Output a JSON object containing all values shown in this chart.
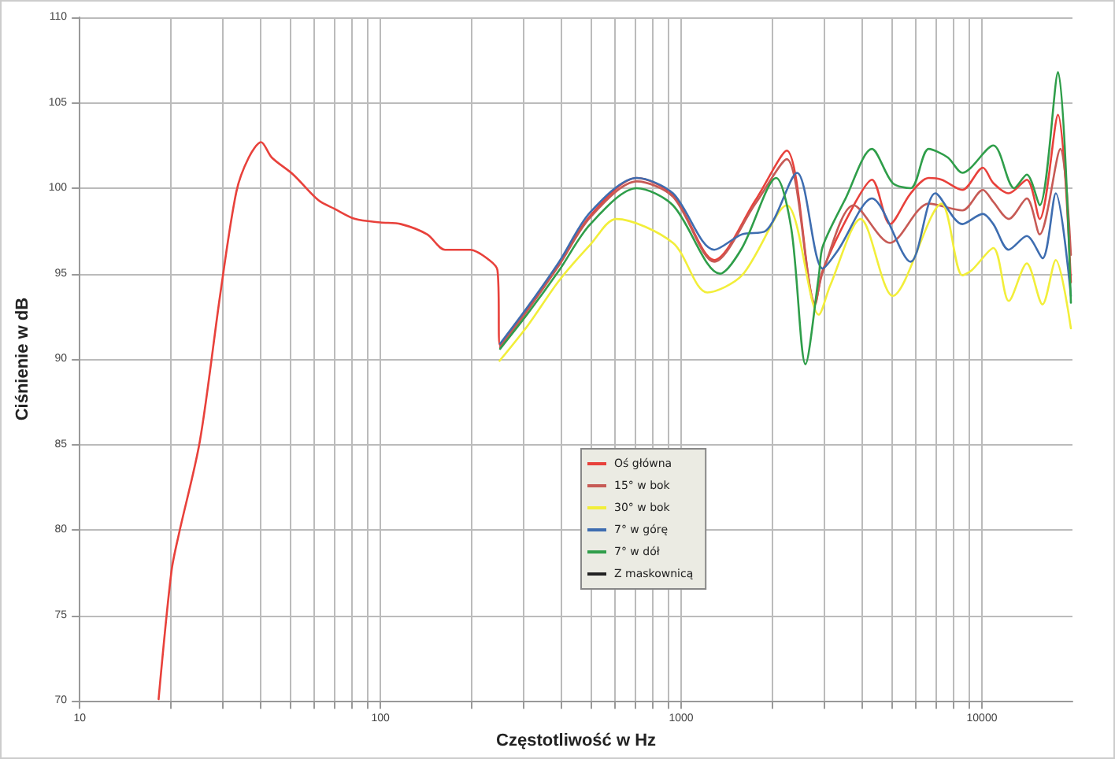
{
  "chart_data": {
    "type": "line",
    "xlabel": "Częstotliwość w Hz",
    "ylabel": "Ciśnienie w dB",
    "log": "x",
    "grid": true,
    "legend": "center",
    "marker": "none",
    "line_style": "solid",
    "xlim": [
      10,
      20000
    ],
    "ylim": [
      70,
      110
    ],
    "xticks": [
      10,
      {
        "value": 20,
        "label": null
      },
      {
        "value": 30,
        "label": null
      },
      {
        "value": 40,
        "label": null
      },
      {
        "value": 50,
        "label": null
      },
      {
        "value": 60,
        "label": null
      },
      {
        "value": 70,
        "label": null
      },
      {
        "value": 80,
        "label": null
      },
      {
        "value": 90,
        "label": null
      },
      100,
      {
        "value": 200,
        "label": null
      },
      {
        "value": 300,
        "label": null
      },
      {
        "value": 400,
        "label": null
      },
      {
        "value": 500,
        "label": null
      },
      {
        "value": 600,
        "label": null
      },
      {
        "value": 700,
        "label": null
      },
      {
        "value": 800,
        "label": null
      },
      {
        "value": 900,
        "label": null
      },
      1000,
      {
        "value": 2000,
        "label": null
      },
      {
        "value": 3000,
        "label": null
      },
      {
        "value": 4000,
        "label": null
      },
      {
        "value": 5000,
        "label": null
      },
      {
        "value": 6000,
        "label": null
      },
      {
        "value": 7000,
        "label": null
      },
      {
        "value": 8000,
        "label": null
      },
      {
        "value": 9000,
        "label": null
      },
      10000
    ],
    "yticks": [
      70,
      75,
      80,
      85,
      90,
      95,
      100,
      105,
      110
    ],
    "series": [
      {
        "name": "Oś główna",
        "color": "#e8413b",
        "x": [
          18.3,
          20.2,
          21.4,
          25.1,
          29.4,
          33.2,
          36.5,
          40.1,
          43.5,
          51.3,
          62.2,
          70.3,
          82.4,
          100,
          117,
          143,
          164,
          199,
          230,
          245,
          250,
          310,
          393,
          499,
          712,
          939,
          1288,
          1766,
          2243,
          2786,
          2956,
          3748,
          4307,
          4946,
          5794,
          6656,
          7344,
          8606,
          10070,
          10910,
          12280,
          14100,
          15560,
          17900,
          19760
        ],
        "values": [
          70.1,
          77.6,
          79.8,
          85.2,
          93.9,
          99.8,
          101.8,
          102.7,
          101.8,
          100.8,
          99.3,
          98.8,
          98.2,
          98.0,
          97.9,
          97.3,
          96.4,
          96.4,
          95.8,
          95.2,
          90.8,
          93.0,
          95.6,
          98.4,
          100.6,
          99.6,
          95.8,
          99.3,
          102.2,
          93.2,
          95.2,
          99.0,
          100.5,
          97.9,
          99.7,
          100.6,
          100.5,
          99.9,
          101.2,
          100.3,
          99.7,
          100.5,
          98.2,
          104.3,
          94.5
        ]
      },
      {
        "name": "15° w bok",
        "color": "#c75a55",
        "x": [
          250,
          310,
          393,
          499,
          712,
          939,
          1288,
          1766,
          2243,
          2786,
          2956,
          3748,
          4946,
          6656,
          8606,
          10070,
          10910,
          12280,
          14100,
          15560,
          18230,
          19760
        ],
        "values": [
          90.7,
          92.9,
          95.5,
          98.3,
          100.4,
          99.5,
          95.7,
          99.1,
          101.7,
          93.3,
          95.1,
          99.0,
          96.8,
          99.1,
          98.7,
          99.9,
          99.2,
          98.2,
          99.4,
          97.3,
          102.3,
          96.1
        ]
      },
      {
        "name": "30° w bok",
        "color": "#f2ee3a",
        "x": [
          249,
          310,
          393,
          499,
          608,
          939,
          1222,
          1593,
          2243,
          2870,
          3128,
          3950,
          5050,
          7344,
          8606,
          9250,
          10910,
          12280,
          14100,
          15900,
          17600,
          19760
        ],
        "values": [
          89.9,
          92.0,
          94.6,
          96.7,
          98.2,
          96.8,
          93.9,
          94.9,
          99.0,
          92.6,
          94.3,
          98.2,
          93.7,
          99.1,
          94.9,
          95.2,
          96.5,
          93.4,
          95.6,
          93.2,
          95.8,
          91.8
        ]
      },
      {
        "name": "7° w górę",
        "color": "#3e6db0",
        "x": [
          250,
          310,
          393,
          499,
          712,
          939,
          1288,
          1593,
          1910,
          2427,
          2956,
          3329,
          4307,
          5794,
          7000,
          8606,
          10070,
          10910,
          12280,
          14100,
          15900,
          17600,
          19760
        ],
        "values": [
          90.9,
          93.1,
          95.7,
          98.6,
          100.6,
          99.7,
          96.4,
          97.3,
          97.5,
          100.9,
          95.3,
          96.4,
          99.4,
          95.7,
          99.7,
          97.9,
          98.5,
          97.9,
          96.4,
          97.2,
          95.9,
          99.7,
          93.7
        ]
      },
      {
        "name": "7° w dół",
        "color": "#2f9e4a",
        "x": [
          250,
          310,
          393,
          499,
          712,
          939,
          1346,
          1593,
          2070,
          2325,
          2590,
          2870,
          2956,
          3520,
          4307,
          5050,
          5794,
          6656,
          7700,
          8606,
          10910,
          12800,
          14100,
          15560,
          17900,
          19760
        ],
        "values": [
          90.6,
          92.7,
          95.2,
          97.9,
          100.0,
          99.0,
          95.0,
          96.5,
          100.6,
          97.6,
          89.7,
          94.9,
          96.6,
          99.4,
          102.3,
          100.3,
          100.0,
          102.3,
          101.8,
          100.9,
          102.5,
          100.0,
          100.8,
          99.0,
          106.8,
          93.3
        ]
      },
      {
        "name": "Z maskownicą",
        "color": "#222222"
      }
    ]
  }
}
